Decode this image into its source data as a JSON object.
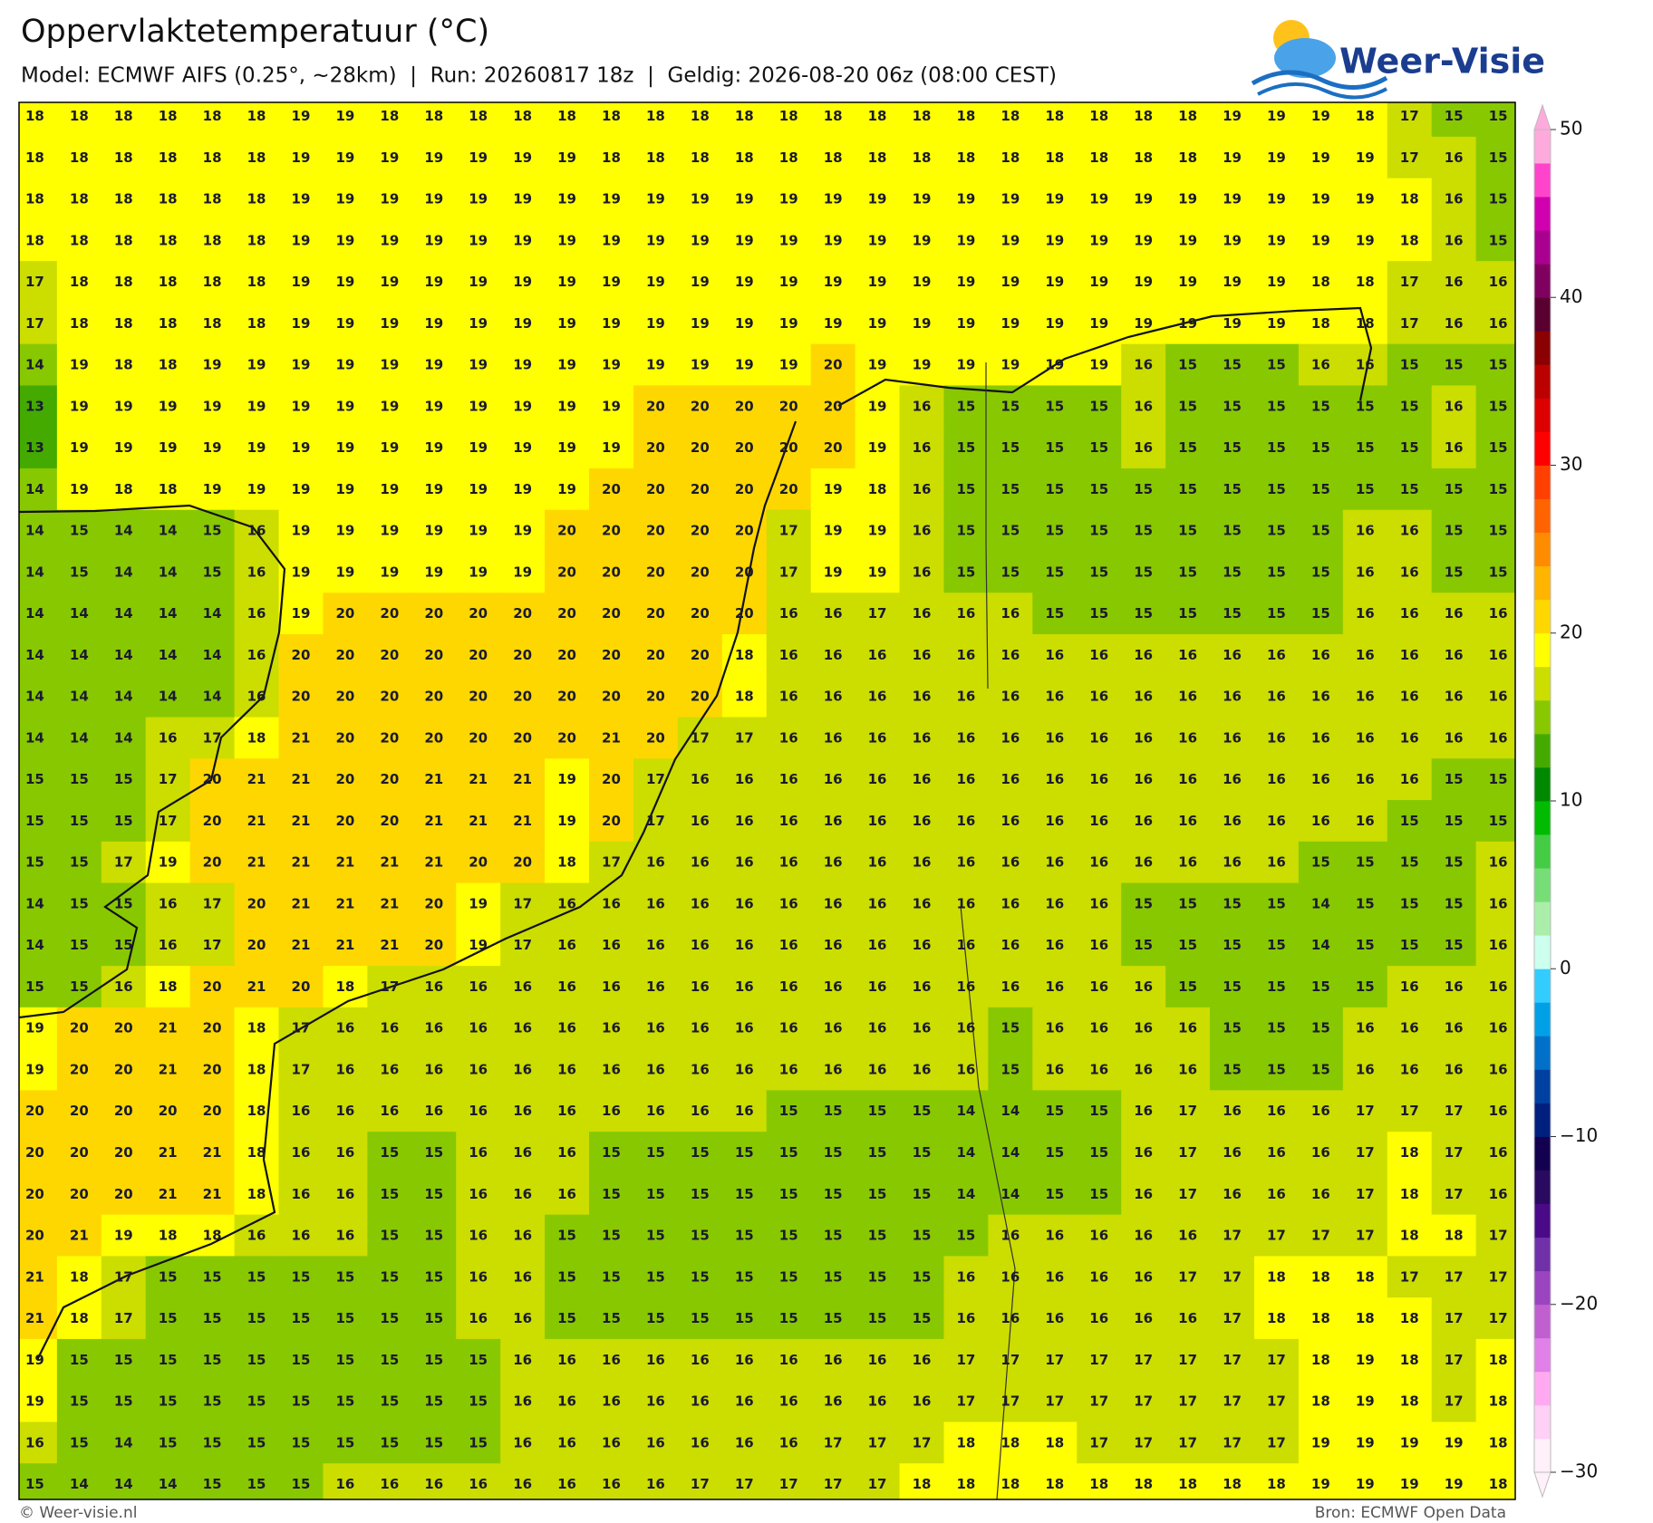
{
  "header": {
    "title": "Oppervlaktetemperatuur (°C)",
    "subtitle": "Model: ECMWF AIFS (0.25°, ~28km)  |  Run: 20260817 18z  |  Geldig: 2026-08-20 06z (08:00 CEST)"
  },
  "logo": "Weer-Visie",
  "map": {
    "grid": [
      [
        18,
        18,
        18,
        18,
        18,
        18,
        19,
        19,
        18,
        18,
        18,
        18,
        18,
        18,
        18,
        18,
        18,
        18,
        18,
        18,
        18,
        18,
        18,
        18,
        18,
        18,
        18,
        19,
        19,
        19,
        18,
        17,
        15,
        15
      ],
      [
        18,
        18,
        18,
        18,
        18,
        18,
        19,
        19,
        19,
        19,
        19,
        19,
        19,
        18,
        18,
        18,
        18,
        18,
        18,
        18,
        18,
        18,
        18,
        18,
        18,
        18,
        18,
        19,
        19,
        19,
        19,
        17,
        16,
        15
      ],
      [
        18,
        18,
        18,
        18,
        18,
        18,
        19,
        19,
        19,
        19,
        19,
        19,
        19,
        19,
        19,
        19,
        19,
        19,
        19,
        19,
        19,
        19,
        19,
        19,
        19,
        19,
        19,
        19,
        19,
        19,
        19,
        18,
        16,
        15
      ],
      [
        18,
        18,
        18,
        18,
        18,
        18,
        19,
        19,
        19,
        19,
        19,
        19,
        19,
        19,
        19,
        19,
        19,
        19,
        19,
        19,
        19,
        19,
        19,
        19,
        19,
        19,
        19,
        19,
        19,
        19,
        19,
        18,
        16,
        15
      ],
      [
        17,
        18,
        18,
        18,
        18,
        18,
        19,
        19,
        19,
        19,
        19,
        19,
        19,
        19,
        19,
        19,
        19,
        19,
        19,
        19,
        19,
        19,
        19,
        19,
        19,
        19,
        19,
        19,
        19,
        18,
        18,
        17,
        16,
        16
      ],
      [
        17,
        18,
        18,
        18,
        18,
        18,
        19,
        19,
        19,
        19,
        19,
        19,
        19,
        19,
        19,
        19,
        19,
        19,
        19,
        19,
        19,
        19,
        19,
        19,
        19,
        19,
        19,
        19,
        19,
        18,
        18,
        17,
        16,
        16
      ],
      [
        14,
        19,
        18,
        18,
        19,
        19,
        19,
        19,
        19,
        19,
        19,
        19,
        19,
        19,
        19,
        19,
        19,
        19,
        20,
        19,
        19,
        19,
        19,
        19,
        19,
        16,
        15,
        15,
        15,
        16,
        16,
        15,
        15,
        15
      ],
      [
        13,
        19,
        19,
        19,
        19,
        19,
        19,
        19,
        19,
        19,
        19,
        19,
        19,
        19,
        20,
        20,
        20,
        20,
        20,
        19,
        16,
        15,
        15,
        15,
        15,
        16,
        15,
        15,
        15,
        15,
        15,
        15,
        16,
        15
      ],
      [
        13,
        19,
        19,
        19,
        19,
        19,
        19,
        19,
        19,
        19,
        19,
        19,
        19,
        19,
        20,
        20,
        20,
        20,
        20,
        19,
        16,
        15,
        15,
        15,
        15,
        16,
        15,
        15,
        15,
        15,
        15,
        15,
        16,
        15
      ],
      [
        14,
        19,
        18,
        18,
        19,
        19,
        19,
        19,
        19,
        19,
        19,
        19,
        19,
        20,
        20,
        20,
        20,
        20,
        19,
        18,
        16,
        15,
        15,
        15,
        15,
        15,
        15,
        15,
        15,
        15,
        15,
        15,
        15,
        15
      ],
      [
        14,
        15,
        14,
        14,
        15,
        16,
        19,
        19,
        19,
        19,
        19,
        19,
        20,
        20,
        20,
        20,
        20,
        17,
        19,
        19,
        16,
        15,
        15,
        15,
        15,
        15,
        15,
        15,
        15,
        15,
        16,
        16,
        15,
        15
      ],
      [
        14,
        15,
        14,
        14,
        15,
        16,
        19,
        19,
        19,
        19,
        19,
        19,
        20,
        20,
        20,
        20,
        20,
        17,
        19,
        19,
        16,
        15,
        15,
        15,
        15,
        15,
        15,
        15,
        15,
        15,
        16,
        16,
        15,
        15
      ],
      [
        14,
        14,
        14,
        14,
        14,
        16,
        19,
        20,
        20,
        20,
        20,
        20,
        20,
        20,
        20,
        20,
        20,
        16,
        16,
        17,
        16,
        16,
        16,
        15,
        15,
        15,
        15,
        15,
        15,
        15,
        16,
        16,
        16,
        16
      ],
      [
        14,
        14,
        14,
        14,
        14,
        16,
        20,
        20,
        20,
        20,
        20,
        20,
        20,
        20,
        20,
        20,
        18,
        16,
        16,
        16,
        16,
        16,
        16,
        16,
        16,
        16,
        16,
        16,
        16,
        16,
        16,
        16,
        16,
        16
      ],
      [
        14,
        14,
        14,
        14,
        14,
        16,
        20,
        20,
        20,
        20,
        20,
        20,
        20,
        20,
        20,
        20,
        18,
        16,
        16,
        16,
        16,
        16,
        16,
        16,
        16,
        16,
        16,
        16,
        16,
        16,
        16,
        16,
        16,
        16
      ],
      [
        14,
        14,
        14,
        16,
        17,
        18,
        21,
        20,
        20,
        20,
        20,
        20,
        20,
        21,
        20,
        17,
        17,
        16,
        16,
        16,
        16,
        16,
        16,
        16,
        16,
        16,
        16,
        16,
        16,
        16,
        16,
        16,
        16,
        16
      ],
      [
        15,
        15,
        15,
        17,
        20,
        21,
        21,
        20,
        20,
        21,
        21,
        21,
        19,
        20,
        17,
        16,
        16,
        16,
        16,
        16,
        16,
        16,
        16,
        16,
        16,
        16,
        16,
        16,
        16,
        16,
        16,
        16,
        15,
        15
      ],
      [
        15,
        15,
        15,
        17,
        20,
        21,
        21,
        20,
        20,
        21,
        21,
        21,
        19,
        20,
        17,
        16,
        16,
        16,
        16,
        16,
        16,
        16,
        16,
        16,
        16,
        16,
        16,
        16,
        16,
        16,
        16,
        15,
        15,
        15
      ],
      [
        15,
        15,
        17,
        19,
        20,
        21,
        21,
        21,
        21,
        21,
        20,
        20,
        18,
        17,
        16,
        16,
        16,
        16,
        16,
        16,
        16,
        16,
        16,
        16,
        16,
        16,
        16,
        16,
        16,
        15,
        15,
        15,
        15,
        16
      ],
      [
        14,
        15,
        15,
        16,
        17,
        20,
        21,
        21,
        21,
        20,
        19,
        17,
        16,
        16,
        16,
        16,
        16,
        16,
        16,
        16,
        16,
        16,
        16,
        16,
        16,
        15,
        15,
        15,
        15,
        14,
        15,
        15,
        15,
        16
      ],
      [
        14,
        15,
        15,
        16,
        17,
        20,
        21,
        21,
        21,
        20,
        19,
        17,
        16,
        16,
        16,
        16,
        16,
        16,
        16,
        16,
        16,
        16,
        16,
        16,
        16,
        15,
        15,
        15,
        15,
        14,
        15,
        15,
        15,
        16
      ],
      [
        15,
        15,
        16,
        18,
        20,
        21,
        20,
        18,
        17,
        16,
        16,
        16,
        16,
        16,
        16,
        16,
        16,
        16,
        16,
        16,
        16,
        16,
        16,
        16,
        16,
        16,
        15,
        15,
        15,
        15,
        15,
        16,
        16,
        16
      ],
      [
        19,
        20,
        20,
        21,
        20,
        18,
        17,
        16,
        16,
        16,
        16,
        16,
        16,
        16,
        16,
        16,
        16,
        16,
        16,
        16,
        16,
        16,
        15,
        16,
        16,
        16,
        16,
        15,
        15,
        15,
        16,
        16,
        16,
        16
      ],
      [
        19,
        20,
        20,
        21,
        20,
        18,
        17,
        16,
        16,
        16,
        16,
        16,
        16,
        16,
        16,
        16,
        16,
        16,
        16,
        16,
        16,
        16,
        15,
        16,
        16,
        16,
        16,
        15,
        15,
        15,
        16,
        16,
        16,
        16
      ],
      [
        20,
        20,
        20,
        20,
        20,
        18,
        16,
        16,
        16,
        16,
        16,
        16,
        16,
        16,
        16,
        16,
        16,
        15,
        15,
        15,
        15,
        14,
        14,
        15,
        15,
        16,
        17,
        16,
        16,
        16,
        17,
        17,
        17,
        16
      ],
      [
        20,
        20,
        20,
        21,
        21,
        18,
        16,
        16,
        15,
        15,
        16,
        16,
        16,
        15,
        15,
        15,
        15,
        15,
        15,
        15,
        15,
        14,
        14,
        15,
        15,
        16,
        17,
        16,
        16,
        16,
        17,
        18,
        17,
        16
      ],
      [
        20,
        20,
        20,
        21,
        21,
        18,
        16,
        16,
        15,
        15,
        16,
        16,
        16,
        15,
        15,
        15,
        15,
        15,
        15,
        15,
        15,
        14,
        14,
        15,
        15,
        16,
        17,
        16,
        16,
        16,
        17,
        18,
        17,
        16
      ],
      [
        20,
        21,
        19,
        18,
        18,
        16,
        16,
        16,
        15,
        15,
        16,
        16,
        15,
        15,
        15,
        15,
        15,
        15,
        15,
        15,
        15,
        15,
        16,
        16,
        16,
        16,
        16,
        17,
        17,
        17,
        17,
        18,
        18,
        17
      ],
      [
        21,
        18,
        17,
        15,
        15,
        15,
        15,
        15,
        15,
        15,
        16,
        16,
        15,
        15,
        15,
        15,
        15,
        15,
        15,
        15,
        15,
        16,
        16,
        16,
        16,
        16,
        17,
        17,
        18,
        18,
        18,
        17,
        17,
        17
      ],
      [
        21,
        18,
        17,
        15,
        15,
        15,
        15,
        15,
        15,
        15,
        16,
        16,
        15,
        15,
        15,
        15,
        15,
        15,
        15,
        15,
        15,
        16,
        16,
        16,
        16,
        16,
        16,
        17,
        18,
        18,
        18,
        18,
        17,
        17
      ],
      [
        19,
        15,
        15,
        15,
        15,
        15,
        15,
        15,
        15,
        15,
        15,
        16,
        16,
        16,
        16,
        16,
        16,
        16,
        16,
        16,
        16,
        17,
        17,
        17,
        17,
        17,
        17,
        17,
        17,
        18,
        19,
        18,
        17,
        18
      ],
      [
        19,
        15,
        15,
        15,
        15,
        15,
        15,
        15,
        15,
        15,
        15,
        16,
        16,
        16,
        16,
        16,
        16,
        16,
        16,
        16,
        16,
        17,
        17,
        17,
        17,
        17,
        17,
        17,
        17,
        18,
        19,
        18,
        17,
        18
      ],
      [
        16,
        15,
        14,
        15,
        15,
        15,
        15,
        15,
        15,
        15,
        15,
        16,
        16,
        16,
        16,
        16,
        16,
        16,
        17,
        17,
        17,
        18,
        18,
        18,
        17,
        17,
        17,
        17,
        17,
        19,
        19,
        19,
        19,
        18
      ],
      [
        15,
        14,
        14,
        14,
        15,
        15,
        15,
        16,
        16,
        16,
        16,
        16,
        16,
        16,
        16,
        17,
        17,
        17,
        17,
        17,
        18,
        18,
        18,
        18,
        18,
        18,
        18,
        18,
        18,
        19,
        19,
        19,
        19,
        18
      ]
    ]
  },
  "colorbar": {
    "lim": [
      -30,
      50
    ],
    "ticks": [
      {
        "value": -30,
        "label": "−30"
      },
      {
        "value": -20,
        "label": "−20"
      },
      {
        "value": -10,
        "label": "−10"
      },
      0,
      10,
      20,
      30,
      40,
      50
    ],
    "colors": [
      "#fff0fa",
      "#ffd0f5",
      "#ffaaf0",
      "#e080e8",
      "#c060d0",
      "#9a44c0",
      "#7030a8",
      "#4a0a88",
      "#2a0a60",
      "#140050",
      "#002080",
      "#0040a0",
      "#0070c8",
      "#00a0e6",
      "#33ccff",
      "#ccffee",
      "#aaeeaa",
      "#77dd77",
      "#44cc44",
      "#00bb00",
      "#008800",
      "#44aa00",
      "#88c800",
      "#ccdd00",
      "#ffff00",
      "#ffd700",
      "#ffb400",
      "#ff8c00",
      "#ff6400",
      "#ff4000",
      "#ff0000",
      "#dd0000",
      "#bb0000",
      "#8b0000",
      "#5a0030",
      "#800060",
      "#aa0090",
      "#d000b0",
      "#ff44cc",
      "#ffaadd"
    ]
  },
  "footer": {
    "left": "© Weer-visie.nl",
    "right": "Bron: ECMWF Open Data"
  }
}
